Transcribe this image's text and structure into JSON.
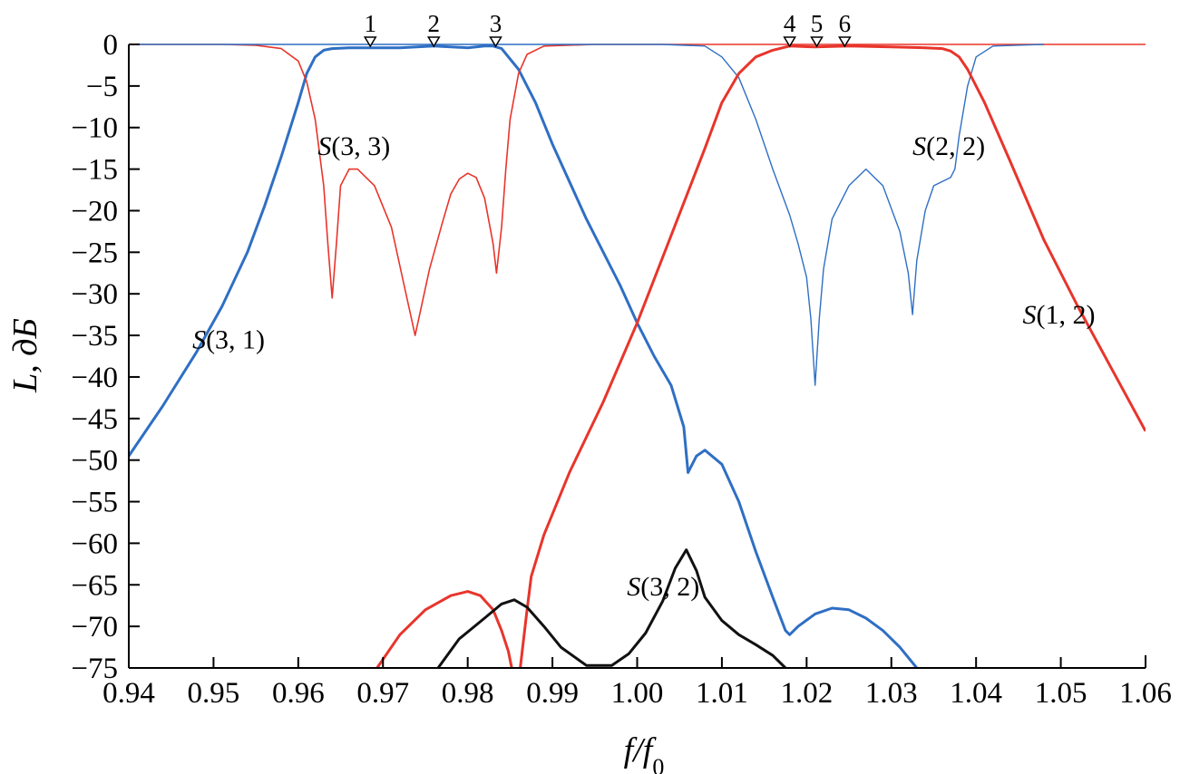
{
  "chart_data": {
    "type": "line",
    "xlabel": "f/f0",
    "ylabel": "L, дБ",
    "xlim": [
      0.94,
      1.06
    ],
    "ylim": [
      -75,
      0
    ],
    "x_ticks": [
      "0.94",
      "0.95",
      "0.96",
      "0.97",
      "0.98",
      "0.99",
      "1.00",
      "1.01",
      "1.02",
      "1.03",
      "1.04",
      "1.05",
      "1.06"
    ],
    "y_ticks": [
      "0",
      "-5",
      "-10",
      "-15",
      "-20",
      "-25",
      "-30",
      "-35",
      "-40",
      "-45",
      "-50",
      "-55",
      "-60",
      "-65",
      "-70",
      "-75"
    ],
    "grid": false,
    "markers": [
      {
        "label": "1",
        "x": 0.9685
      },
      {
        "label": "2",
        "x": 0.976
      },
      {
        "label": "3",
        "x": 0.9833
      },
      {
        "label": "4",
        "x": 1.018
      },
      {
        "label": "5",
        "x": 1.0212
      },
      {
        "label": "6",
        "x": 1.0245
      }
    ],
    "series": [
      {
        "name": "S(3, 1)",
        "color": "#2f6fc4",
        "width": 3,
        "label_pos": [
          0.9475,
          -36.6
        ],
        "x": [
          0.94,
          0.944,
          0.948,
          0.951,
          0.954,
          0.956,
          0.958,
          0.96,
          0.961,
          0.962,
          0.963,
          0.964,
          0.966,
          0.968,
          0.972,
          0.976,
          0.98,
          0.982,
          0.983,
          0.984,
          0.986,
          0.988,
          0.99,
          0.994,
          0.998,
          1.0,
          1.002,
          1.004,
          1.0055,
          1.006,
          1.007,
          1.008,
          1.01,
          1.012,
          1.014,
          1.016,
          1.0175,
          1.018,
          1.019,
          1.021,
          1.023,
          1.025,
          1.027,
          1.029,
          1.031,
          1.033
        ],
        "y": [
          -49.5,
          -43.5,
          -37,
          -31.5,
          -25,
          -19.5,
          -13.5,
          -7,
          -3.5,
          -1.5,
          -0.7,
          -0.5,
          -0.4,
          -0.4,
          -0.4,
          -0.2,
          -0.4,
          -0.2,
          -0.2,
          -0.5,
          -3,
          -7,
          -12,
          -21,
          -29,
          -33.5,
          -37.5,
          -41,
          -46,
          -51.5,
          -49.5,
          -48.8,
          -50.5,
          -55,
          -61,
          -66.5,
          -70.5,
          -71,
          -70,
          -68.5,
          -67.8,
          -68,
          -69,
          -70.5,
          -72.5,
          -75
        ]
      },
      {
        "name": "S(3, 3)",
        "color": "#e8352b",
        "width": 1.6,
        "label_pos": [
          0.9623,
          -13.3
        ],
        "x": [
          0.94,
          0.951,
          0.955,
          0.958,
          0.96,
          0.961,
          0.962,
          0.963,
          0.9635,
          0.964,
          0.9645,
          0.965,
          0.966,
          0.967,
          0.969,
          0.971,
          0.9725,
          0.9738,
          0.9755,
          0.977,
          0.978,
          0.979,
          0.98,
          0.981,
          0.982,
          0.983,
          0.9834,
          0.984,
          0.9845,
          0.985,
          0.986,
          0.987,
          0.989,
          0.995,
          1.06
        ],
        "y": [
          0,
          0,
          -0.1,
          -0.5,
          -2,
          -4.5,
          -9,
          -17,
          -24,
          -30.5,
          -24,
          -17,
          -15,
          -15,
          -17,
          -22,
          -29,
          -35,
          -27,
          -21.5,
          -18,
          -16.2,
          -15.5,
          -16,
          -18.5,
          -24,
          -27.5,
          -22,
          -15,
          -9,
          -3.5,
          -1.2,
          -0.2,
          0,
          0
        ]
      },
      {
        "name": "S(2, 2)",
        "color": "#2f6fc4",
        "width": 1.4,
        "label_pos": [
          1.0325,
          -13.3
        ],
        "x": [
          0.94,
          1.003,
          1.008,
          1.01,
          1.012,
          1.014,
          1.016,
          1.018,
          1.019,
          1.02,
          1.0205,
          1.021,
          1.0215,
          1.022,
          1.023,
          1.025,
          1.027,
          1.029,
          1.031,
          1.032,
          1.0325,
          1.033,
          1.034,
          1.035,
          1.036,
          1.037,
          1.0375,
          1.038,
          1.039,
          1.04,
          1.042,
          1.048
        ],
        "y": [
          0,
          0,
          -0.2,
          -1.5,
          -4,
          -9,
          -15,
          -20.5,
          -24,
          -28,
          -33,
          -41,
          -33,
          -27,
          -21,
          -17,
          -15,
          -17,
          -22.5,
          -27.5,
          -32.5,
          -26,
          -20,
          -17,
          -16.5,
          -16,
          -15,
          -11,
          -5,
          -1.5,
          -0.2,
          0
        ]
      },
      {
        "name": "S(1, 2)",
        "color": "#e8352b",
        "width": 3,
        "label_pos": [
          1.0455,
          -33.6
        ],
        "x": [
          1.06,
          1.056,
          1.052,
          1.048,
          1.044,
          1.041,
          1.039,
          1.038,
          1.037,
          1.036,
          1.034,
          1.03,
          1.025,
          1.021,
          1.018,
          1.016,
          1.014,
          1.012,
          1.01,
          1.008,
          1.004,
          1.0,
          0.996,
          0.992,
          0.989,
          0.9875,
          0.987,
          0.9862
        ],
        "y": [
          -46.5,
          -39,
          -31.5,
          -23.5,
          -14,
          -7,
          -3,
          -1.5,
          -0.8,
          -0.5,
          -0.4,
          -0.3,
          -0.2,
          -0.3,
          -0.2,
          -0.7,
          -1.5,
          -3.5,
          -7,
          -12.5,
          -23,
          -33.5,
          -43,
          -51.5,
          -59,
          -64,
          -68,
          -75
        ]
      },
      {
        "name": "",
        "color": "#e8352b",
        "width": 3,
        "x": [
          0.9693,
          0.972,
          0.975,
          0.978,
          0.98,
          0.9815,
          0.983,
          0.984,
          0.9848,
          0.9852
        ],
        "y": [
          -75,
          -71,
          -68,
          -66.3,
          -65.8,
          -66.3,
          -68,
          -70.5,
          -73,
          -75
        ]
      },
      {
        "name": "S(3, 2)",
        "color": "#111111",
        "width": 3,
        "label_pos": [
          0.9988,
          -66.3
        ],
        "x": [
          0.9765,
          0.979,
          0.982,
          0.984,
          0.9855,
          0.987,
          0.989,
          0.991,
          0.994,
          0.997,
          0.999,
          1.001,
          1.003,
          1.0045,
          1.0058,
          1.007,
          1.008,
          1.01,
          1.012,
          1.014,
          1.016,
          1.0175
        ],
        "y": [
          -75,
          -71.5,
          -69,
          -67.3,
          -66.8,
          -67.7,
          -70,
          -72.5,
          -74.7,
          -74.7,
          -73.3,
          -70.8,
          -67,
          -63,
          -60.8,
          -63.3,
          -66.5,
          -69.3,
          -71,
          -72.2,
          -73.5,
          -75
        ]
      }
    ]
  }
}
